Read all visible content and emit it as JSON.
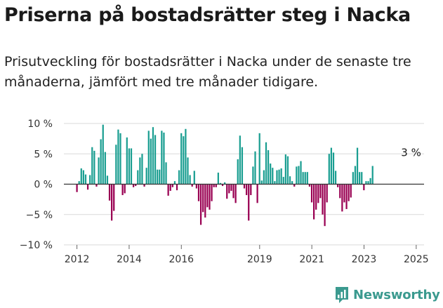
{
  "title": "Priserna på bostadsrätter steg i Nacka",
  "subtitle": "Prisutveckling för bostadsrätter i Nacka under de senaste tre månaderna, jämfört med tre månader tidigare.",
  "brand": {
    "name": "Newsworthy",
    "icon": "newsworthy-logo-icon",
    "color": "#3b9a8f"
  },
  "colors": {
    "positive": "#1a9e91",
    "negative": "#990052"
  },
  "chart_data": {
    "type": "bar",
    "xlabel": "",
    "ylabel": "",
    "ylim": [
      -10,
      10
    ],
    "yticks": [
      {
        "value": 10,
        "label": "10 %"
      },
      {
        "value": 5,
        "label": "5 %"
      },
      {
        "value": 0,
        "label": "0 %"
      },
      {
        "value": -5,
        "label": "−5 %"
      },
      {
        "value": -10,
        "label": "−10 %"
      }
    ],
    "xlim": [
      2011.5,
      2025.3
    ],
    "xticks": [
      {
        "value": 2012,
        "label": "2012"
      },
      {
        "value": 2014,
        "label": "2014"
      },
      {
        "value": 2016,
        "label": "2016"
      },
      {
        "value": 2019,
        "label": "2019"
      },
      {
        "value": 2021,
        "label": "2021"
      },
      {
        "value": 2023,
        "label": "2023"
      },
      {
        "value": 2025,
        "label": "2025"
      }
    ],
    "start": 2012.0,
    "step": 0.0833,
    "values": [
      -1.3,
      0.5,
      2.6,
      2.3,
      1.6,
      -0.9,
      1.5,
      6.1,
      5.5,
      -0.4,
      4.4,
      7.4,
      9.8,
      5.3,
      1.4,
      -2.7,
      -6.0,
      -4.4,
      6.5,
      9.0,
      8.4,
      -1.8,
      -1.5,
      7.7,
      5.9,
      5.9,
      -0.5,
      -0.3,
      2.3,
      4.4,
      5.0,
      -0.4,
      2.7,
      8.8,
      7.5,
      9.4,
      8.1,
      2.4,
      2.4,
      8.8,
      8.5,
      3.6,
      -1.9,
      -1.1,
      -0.5,
      0.5,
      -1.0,
      2.3,
      8.4,
      7.9,
      9.1,
      4.4,
      1.5,
      -0.4,
      2.2,
      -0.7,
      -2.8,
      -6.7,
      -4.6,
      -5.5,
      -3.8,
      -4.2,
      -2.8,
      -0.5,
      -0.5,
      1.9,
      0.2,
      -0.3,
      0.3,
      -2.4,
      -1.5,
      -1.1,
      -2.3,
      -3.1,
      4.1,
      8.0,
      6.1,
      -0.7,
      -1.8,
      -6.0,
      -1.8,
      2.9,
      5.4,
      -3.1,
      8.4,
      0.6,
      2.3,
      6.9,
      5.6,
      3.4,
      2.7,
      0.5,
      2.3,
      2.4,
      2.6,
      1.2,
      4.9,
      4.6,
      1.3,
      0.5,
      -0.4,
      2.9,
      3.0,
      3.8,
      2.0,
      2.0,
      2.0,
      -0.4,
      -3.0,
      -5.8,
      -4.2,
      -3.1,
      -2.3,
      -5.0,
      -6.9,
      -3.0,
      5.0,
      6.0,
      5.2,
      2.2,
      -0.5,
      -2.3,
      -4.5,
      -3.0,
      -4.1,
      -2.8,
      -2.2,
      2.0,
      3.0,
      6.0,
      2.0,
      2.0,
      -1.0,
      0.5,
      0.5,
      1.0,
      3.0
    ],
    "annotation": {
      "text": "3 %",
      "x": 2024.85,
      "y": 3.0
    }
  }
}
